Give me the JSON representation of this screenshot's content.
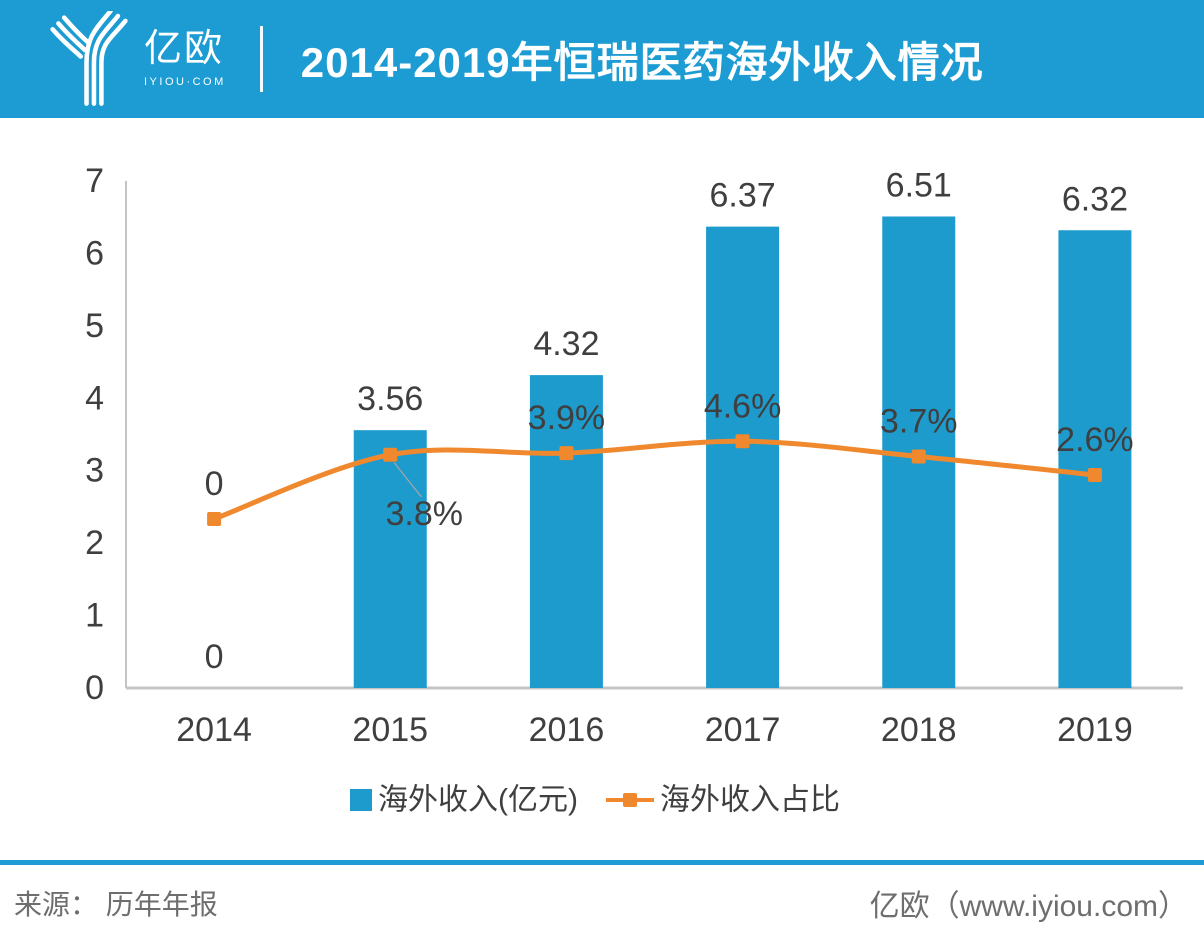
{
  "header": {
    "logo_text": "亿欧",
    "logo_sub": "IYIOU·COM",
    "title": "2014-2019年恒瑞医药海外收入情况"
  },
  "footer": {
    "source": "来源： 历年年报",
    "brand": "亿欧（www.iyiou.com）"
  },
  "colors": {
    "brand_blue": "#1D9CD3",
    "bar_blue": "#1E9BCD",
    "orange": "#F0882E",
    "text_dark": "#3F3F3F",
    "text_grey": "#6E6E6E",
    "axis_grey": "#C4C4C4",
    "leader_grey": "#A6A6A6"
  },
  "chart_data": {
    "type": "bar",
    "title": "2014-2019年恒瑞医药海外收入情况",
    "categories": [
      "2014",
      "2015",
      "2016",
      "2017",
      "2018",
      "2019"
    ],
    "series": [
      {
        "name": "海外收入(亿元)",
        "type": "bar",
        "values": [
          0,
          3.56,
          4.32,
          6.37,
          6.51,
          6.32
        ],
        "labels": [
          "0",
          "3.56",
          "4.32",
          "6.37",
          "6.51",
          "6.32"
        ]
      },
      {
        "name": "海外收入占比",
        "type": "line",
        "unit": "%",
        "values": [
          0,
          3.8,
          3.9,
          4.6,
          3.7,
          2.6
        ],
        "labels": [
          "0",
          "3.8%",
          "3.9%",
          "4.6%",
          "3.7%",
          "2.6%"
        ],
        "label_positions": [
          "above",
          "below-right",
          "above",
          "above",
          "above",
          "above"
        ],
        "secondary_axis_range": [
          -10,
          20
        ],
        "smooth": true
      }
    ],
    "xlabel": "",
    "ylabel": "",
    "ylim": [
      0,
      7
    ],
    "yticks": [
      "0",
      "1",
      "2",
      "3",
      "4",
      "5",
      "6",
      "7"
    ],
    "grid": false,
    "legend_position": "bottom"
  }
}
